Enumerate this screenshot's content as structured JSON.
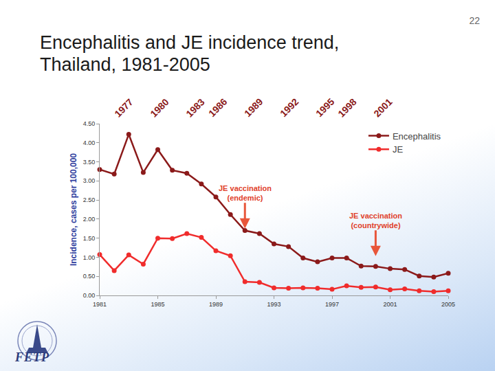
{
  "page_number": "22",
  "title_lines": [
    "Encephalitis and JE incidence trend,",
    "Thailand, 1981-2005"
  ],
  "logo_text": "FETP",
  "chart_data": {
    "type": "line",
    "x": [
      1981,
      1982,
      1983,
      1984,
      1985,
      1986,
      1987,
      1988,
      1989,
      1990,
      1991,
      1992,
      1993,
      1994,
      1995,
      1996,
      1997,
      1998,
      1999,
      2000,
      2001,
      2002,
      2003,
      2004,
      2005
    ],
    "series": [
      {
        "name": "Encephalitis",
        "color": "#8b1a1a",
        "marker": "circle",
        "values": [
          3.3,
          3.18,
          4.22,
          3.22,
          3.82,
          3.28,
          3.2,
          2.92,
          2.58,
          2.12,
          1.7,
          1.62,
          1.35,
          1.28,
          0.98,
          0.88,
          0.98,
          0.98,
          0.77,
          0.76,
          0.7,
          0.68,
          0.51,
          0.48,
          0.58
        ]
      },
      {
        "name": "JE",
        "color": "#f02c2c",
        "marker": "circle",
        "values": [
          1.07,
          0.65,
          1.06,
          0.82,
          1.5,
          1.49,
          1.62,
          1.52,
          1.17,
          1.04,
          0.36,
          0.34,
          0.2,
          0.19,
          0.2,
          0.19,
          0.16,
          0.25,
          0.21,
          0.22,
          0.15,
          0.17,
          0.12,
          0.1,
          0.12
        ]
      }
    ],
    "xlim": [
      1981,
      2005
    ],
    "xticks": [
      1981,
      1985,
      1989,
      1993,
      1997,
      2001,
      2005
    ],
    "ylim": [
      0,
      4.5
    ],
    "yticks": [
      {
        "value": 0,
        "label": "0.00"
      },
      {
        "value": 0.5,
        "label": "0.50"
      },
      {
        "value": 1,
        "label": "1.00"
      },
      {
        "value": 1.5,
        "label": "1.50"
      },
      {
        "value": 2,
        "label": "2.00"
      },
      {
        "value": 2.5,
        "label": "2.50"
      },
      {
        "value": 3,
        "label": "3.00"
      },
      {
        "value": 3.5,
        "label": "3.50"
      },
      {
        "value": 4,
        "label": "4.00"
      },
      {
        "value": 4.5,
        "label": "4.50"
      }
    ],
    "ylabel": "Incidence, cases per 100,000",
    "grid": false,
    "legend": "top right",
    "annotations": [
      {
        "lines": [
          "JE vaccination",
          "(endemic)"
        ],
        "x": 1991,
        "y": 1.75
      },
      {
        "lines": [
          "JE vaccination",
          "(countrywide)"
        ],
        "x": 2000,
        "y": 1.03
      }
    ],
    "overlay_labels": [
      "1977",
      "1980",
      "1983",
      "1986",
      "1989",
      "1992",
      "1995",
      "1998",
      "2001"
    ]
  }
}
